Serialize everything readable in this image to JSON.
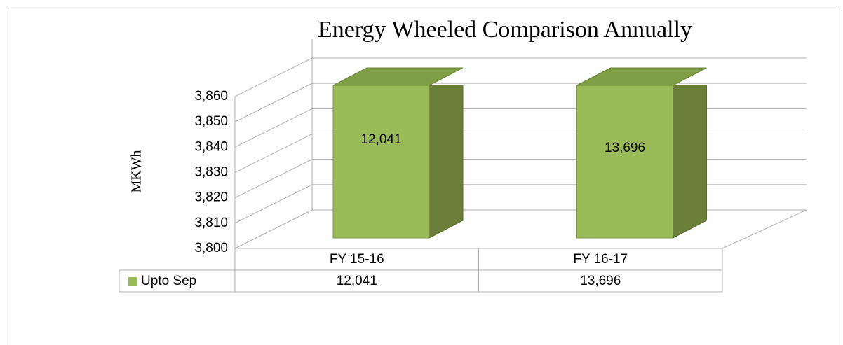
{
  "chart_data": {
    "type": "bar",
    "title": "Energy Wheeled Comparison Annually",
    "y_label": "MKWh",
    "categories": [
      "FY 15-16",
      "FY 16-17"
    ],
    "series": [
      {
        "name": "Upto Sep",
        "color": "#9bbb59",
        "values": [
          12041,
          13696
        ],
        "value_labels": [
          "12,041",
          "13,696"
        ]
      }
    ],
    "ylim": [
      3800,
      3860
    ],
    "yticks": [
      {
        "value": 3800,
        "label": "3,800"
      },
      {
        "value": 3810,
        "label": "3,810"
      },
      {
        "value": 3820,
        "label": "3,820"
      },
      {
        "value": 3830,
        "label": "3,830"
      },
      {
        "value": 3840,
        "label": "3,840"
      },
      {
        "value": 3850,
        "label": "3,850"
      },
      {
        "value": 3860,
        "label": "3,860"
      }
    ],
    "grid": true,
    "data_table": true
  }
}
